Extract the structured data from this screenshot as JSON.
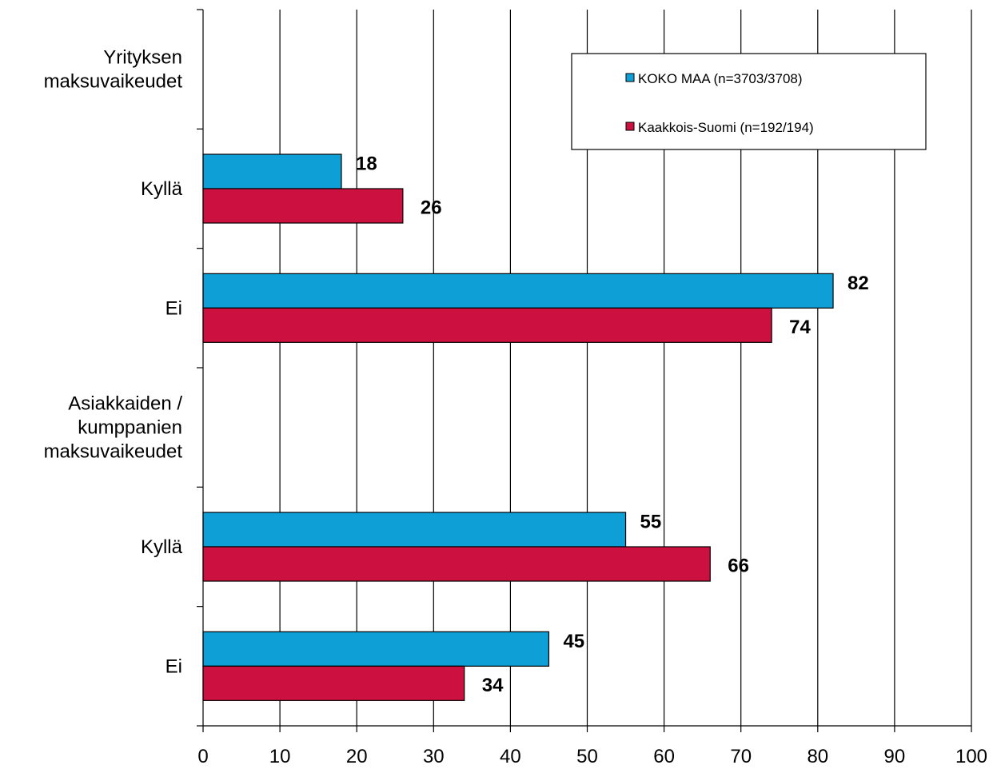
{
  "chart_data": {
    "type": "bar",
    "orientation": "horizontal",
    "categories": [
      "Yrityksen maksuvaikeudet",
      "Kyllä",
      "Ei",
      "Asiakkaiden / kumppanien maksuvaikeudet",
      "Kyllä",
      "Ei"
    ],
    "category_lines": [
      [
        "Yrityksen",
        "maksuvaikeudet"
      ],
      [
        "Kyllä"
      ],
      [
        "Ei"
      ],
      [
        "Asiakkaiden /",
        "kumppanien",
        "maksuvaikeudet"
      ],
      [
        "Kyllä"
      ],
      [
        "Ei"
      ]
    ],
    "series": [
      {
        "name": "KOKO MAA  (n=3703/3708)",
        "color": "#0F9FD7",
        "values": [
          null,
          18,
          82,
          null,
          55,
          45
        ]
      },
      {
        "name": "Kaakkois-Suomi (n=192/194)",
        "color": "#CC1140",
        "values": [
          null,
          26,
          74,
          null,
          66,
          34
        ]
      }
    ],
    "xlim": [
      0,
      100
    ],
    "xticks": [
      0,
      10,
      20,
      30,
      40,
      50,
      60,
      70,
      80,
      90,
      100
    ],
    "grid": "vertical",
    "legend_position": "top-right",
    "title": "",
    "xlabel": "",
    "ylabel": ""
  }
}
